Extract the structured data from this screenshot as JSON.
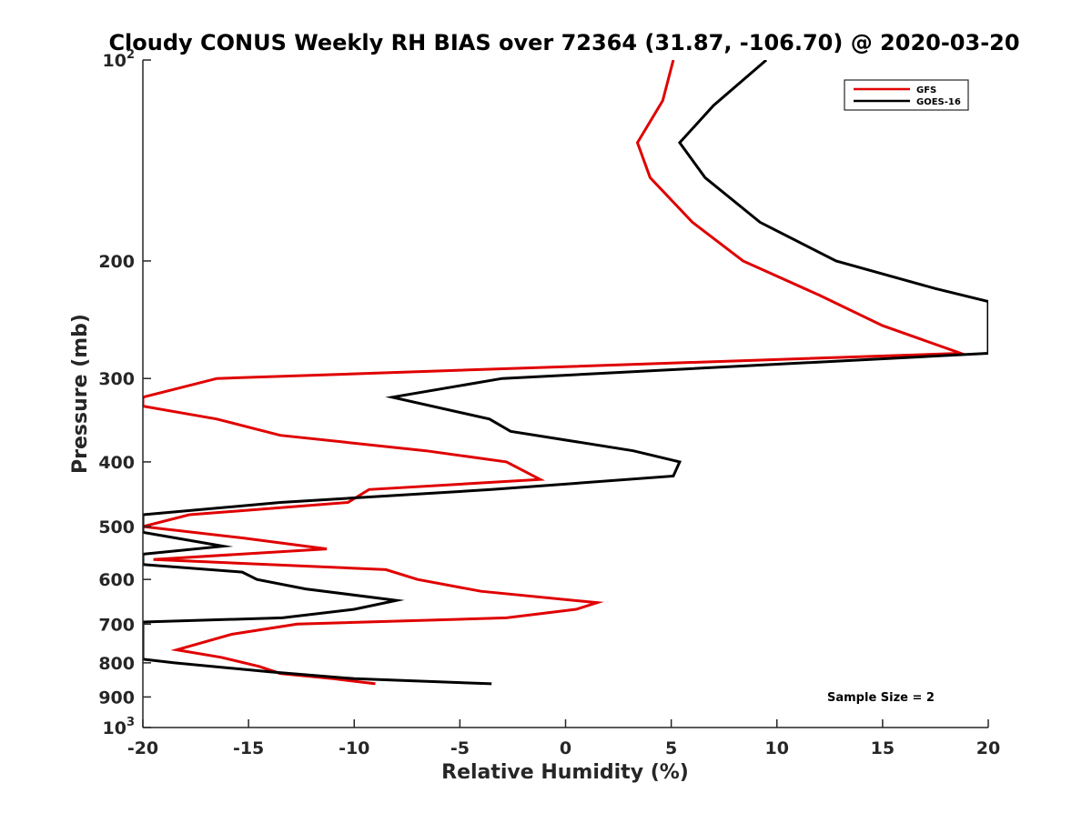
{
  "chart_data": {
    "type": "line",
    "title": "Cloudy CONUS Weekly RH BIAS over 72364 (31.87, -106.70) @ 2020-03-20",
    "xlabel": "Relative Humidity (%)",
    "ylabel": "Pressure (mb)",
    "xlim": [
      -20,
      20
    ],
    "ylim": [
      100,
      1000
    ],
    "y_scale": "log",
    "y_reversed": true,
    "grid": false,
    "legend_position": "top-right",
    "x_ticks": [
      -20,
      -15,
      -10,
      -5,
      0,
      5,
      10,
      15,
      20
    ],
    "x_tick_labels": [
      "-20",
      "-15",
      "-10",
      "-5",
      "0",
      "5",
      "10",
      "15",
      "20"
    ],
    "y_ticks": [
      100,
      200,
      300,
      400,
      500,
      600,
      700,
      800,
      900,
      1000
    ],
    "y_tick_labels": [
      {
        "base": "10",
        "exp": "2"
      },
      {
        "base": "200",
        "exp": ""
      },
      {
        "base": "300",
        "exp": ""
      },
      {
        "base": "400",
        "exp": ""
      },
      {
        "base": "500",
        "exp": ""
      },
      {
        "base": "600",
        "exp": ""
      },
      {
        "base": "700",
        "exp": ""
      },
      {
        "base": "800",
        "exp": ""
      },
      {
        "base": "900",
        "exp": ""
      },
      {
        "base": "10",
        "exp": "3"
      }
    ],
    "annotation": "Sample Size = 2",
    "series": [
      {
        "name": "GFS",
        "color": "#e00000",
        "points": [
          [
            5.1,
            100
          ],
          [
            4.6,
            115
          ],
          [
            3.4,
            133
          ],
          [
            4.0,
            150
          ],
          [
            6.0,
            175
          ],
          [
            8.4,
            200
          ],
          [
            12.0,
            225
          ],
          [
            15.0,
            250
          ],
          [
            18.7,
            275
          ],
          [
            -16.5,
            300
          ],
          [
            -20.0,
            320
          ],
          [
            -20.0,
            330
          ],
          [
            -16.5,
            345
          ],
          [
            -13.5,
            365
          ],
          [
            -6.6,
            385
          ],
          [
            -2.8,
            400
          ],
          [
            -1.2,
            425
          ],
          [
            -9.3,
            440
          ],
          [
            -10.3,
            460
          ],
          [
            -17.8,
            480
          ],
          [
            -20.0,
            500
          ],
          [
            -15.3,
            520
          ],
          [
            -11.3,
            540
          ],
          [
            -19.5,
            560
          ],
          [
            -8.5,
            580
          ],
          [
            -7.0,
            600
          ],
          [
            -4.0,
            625
          ],
          [
            1.5,
            650
          ],
          [
            0.5,
            665
          ],
          [
            -2.8,
            685
          ],
          [
            -12.7,
            700
          ],
          [
            -15.8,
            725
          ],
          [
            -18.4,
            765
          ],
          [
            -16.3,
            785
          ],
          [
            -14.5,
            810
          ],
          [
            -13.5,
            830
          ],
          [
            -11.0,
            845
          ],
          [
            -9.0,
            860
          ]
        ]
      },
      {
        "name": "GOES-16",
        "color": "#000000",
        "points": [
          [
            9.5,
            100
          ],
          [
            7.0,
            117
          ],
          [
            5.4,
            133
          ],
          [
            6.6,
            150
          ],
          [
            9.2,
            175
          ],
          [
            12.8,
            200
          ],
          [
            17.5,
            220
          ],
          [
            20.0,
            230
          ],
          [
            20.0,
            275
          ],
          [
            -3.0,
            300
          ],
          [
            -8.2,
            320
          ],
          [
            -3.6,
            345
          ],
          [
            -2.6,
            360
          ],
          [
            3.2,
            385
          ],
          [
            5.4,
            400
          ],
          [
            5.1,
            420
          ],
          [
            -3.5,
            440
          ],
          [
            -13.5,
            460
          ],
          [
            -20.0,
            480
          ],
          [
            -20.0,
            510
          ],
          [
            -16.2,
            535
          ],
          [
            -20.0,
            550
          ],
          [
            -20.0,
            570
          ],
          [
            -15.3,
            585
          ],
          [
            -14.6,
            600
          ],
          [
            -12.3,
            620
          ],
          [
            -8.0,
            645
          ],
          [
            -10.0,
            665
          ],
          [
            -13.4,
            685
          ],
          [
            -20.0,
            695
          ],
          [
            -20.0,
            790
          ],
          [
            -18.5,
            800
          ],
          [
            -14.0,
            825
          ],
          [
            -10.0,
            845
          ],
          [
            -3.5,
            860
          ]
        ]
      }
    ]
  }
}
